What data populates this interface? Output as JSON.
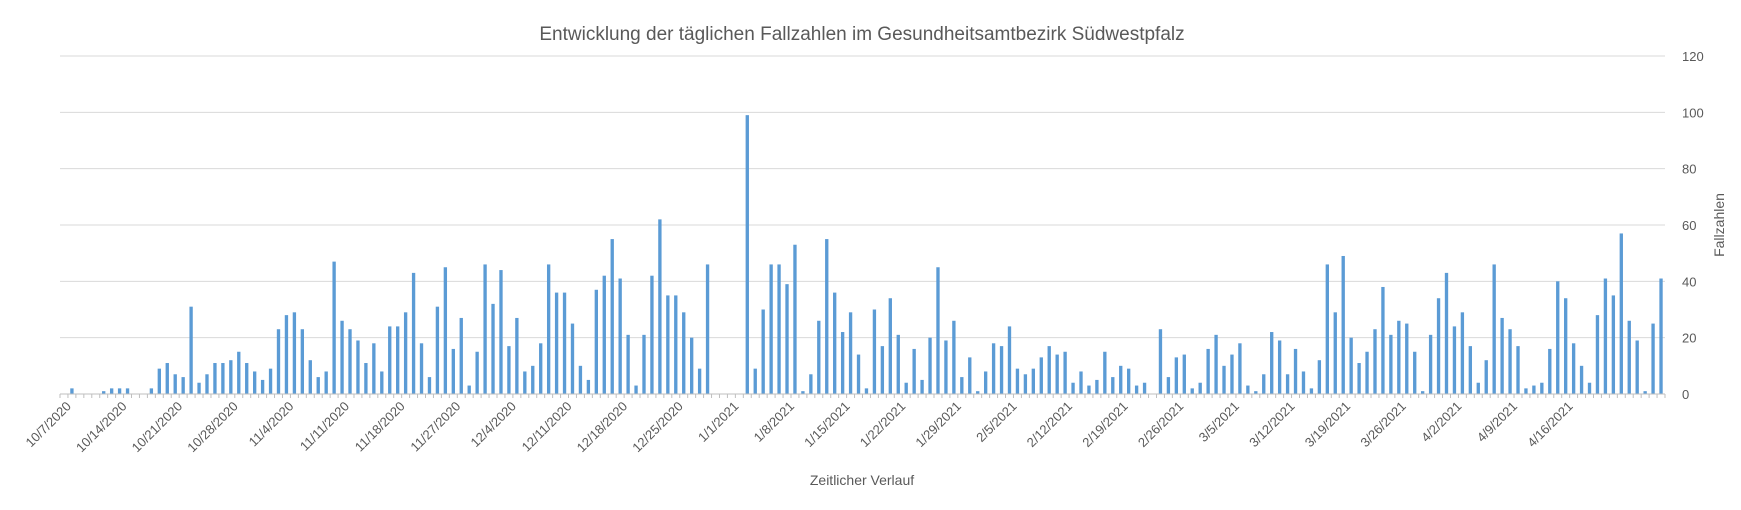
{
  "chart_data": {
    "type": "bar",
    "title": "Entwicklung der täglichen Fallzahlen im Gesundheitsamtbezirk Südwestpfalz",
    "xlabel": "Zeitlicher Verlauf",
    "ylabel": "Fallzahlen",
    "ylim": [
      0,
      120
    ],
    "y_ticks": [
      0,
      20,
      40,
      60,
      80,
      100,
      120
    ],
    "y_axis_side": "right",
    "grid": true,
    "legend": "none",
    "bar_color": "#5b9bd5",
    "start_date": "10/6/2020",
    "x_tick_labels": [
      "10/7/2020",
      "10/14/2020",
      "10/21/2020",
      "10/28/2020",
      "11/4/2020",
      "11/11/2020",
      "11/18/2020",
      "11/27/2020",
      "12/4/2020",
      "12/11/2020",
      "12/18/2020",
      "12/25/2020",
      "1/1/2021",
      "1/8/2021",
      "1/15/2021",
      "1/22/2021",
      "1/29/2021",
      "2/5/2021",
      "2/12/2021",
      "2/19/2021",
      "2/26/2021",
      "3/5/2021",
      "3/12/2021",
      "3/19/2021",
      "3/26/2021",
      "4/2/2021",
      "4/9/2021",
      "4/16/2021"
    ],
    "values": [
      0,
      2,
      0,
      0,
      0,
      1,
      2,
      2,
      2,
      0,
      0,
      2,
      9,
      11,
      7,
      6,
      31,
      4,
      7,
      11,
      11,
      12,
      15,
      11,
      8,
      5,
      9,
      23,
      28,
      29,
      23,
      12,
      6,
      8,
      47,
      26,
      23,
      19,
      11,
      18,
      8,
      24,
      24,
      29,
      43,
      18,
      6,
      31,
      45,
      16,
      27,
      3,
      15,
      46,
      32,
      44,
      17,
      27,
      8,
      10,
      18,
      46,
      36,
      36,
      25,
      10,
      5,
      37,
      42,
      55,
      41,
      21,
      3,
      21,
      42,
      62,
      35,
      35,
      29,
      20,
      9,
      46,
      0,
      0,
      0,
      0,
      99,
      9,
      30,
      46,
      46,
      39,
      53,
      1,
      7,
      26,
      55,
      36,
      22,
      29,
      14,
      2,
      30,
      17,
      34,
      21,
      4,
      16,
      5,
      20,
      45,
      19,
      26,
      6,
      13,
      1,
      8,
      18,
      17,
      24,
      9,
      7,
      9,
      13,
      17,
      14,
      15,
      4,
      8,
      3,
      5,
      15,
      6,
      10,
      9,
      3,
      4,
      0,
      23,
      6,
      13,
      14,
      2,
      4,
      16,
      21,
      10,
      14,
      18,
      3,
      1,
      7,
      22,
      19,
      7,
      16,
      8,
      2,
      12,
      46,
      29,
      49,
      20,
      11,
      15,
      23,
      38,
      21,
      26,
      25,
      15,
      1,
      21,
      34,
      43,
      24,
      29,
      17,
      4,
      12,
      46,
      27,
      23,
      17,
      2,
      3,
      4,
      16,
      40,
      34,
      18,
      10,
      4,
      28,
      41,
      35,
      57,
      26,
      19,
      1,
      25,
      41
    ]
  }
}
